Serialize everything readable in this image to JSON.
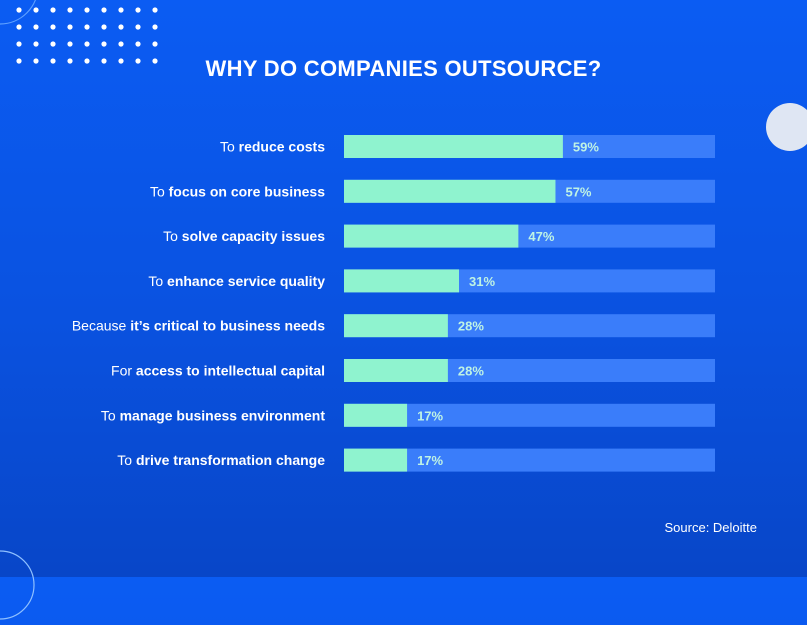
{
  "title": "WHY DO COMPANIES OUTSOURCE?",
  "source": "Source: Deloitte",
  "colors": {
    "bar_fill": "#8ff3cf",
    "bar_track": "#3a7dfa",
    "value_label": "#bff3e4",
    "background": "#0b5cf3"
  },
  "chart_data": {
    "type": "bar",
    "orientation": "horizontal",
    "title": "WHY DO COMPANIES OUTSOURCE?",
    "xlim": [
      0,
      100
    ],
    "unit": "%",
    "categories": [
      {
        "prefix": "To ",
        "bold": "reduce costs",
        "value": 59,
        "label": "59%"
      },
      {
        "prefix": "To ",
        "bold": "focus on core business",
        "value": 57,
        "label": "57%"
      },
      {
        "prefix": "To ",
        "bold": "solve capacity issues",
        "value": 47,
        "label": "47%"
      },
      {
        "prefix": "To ",
        "bold": "enhance service quality",
        "value": 31,
        "label": "31%"
      },
      {
        "prefix": "Because ",
        "bold": "it’s critical to business needs",
        "value": 28,
        "label": "28%"
      },
      {
        "prefix": "For ",
        "bold": "access to intellectual capital",
        "value": 28,
        "label": "28%"
      },
      {
        "prefix": "To ",
        "bold": "manage business environment",
        "value": 17,
        "label": "17%"
      },
      {
        "prefix": "To ",
        "bold": "drive transformation change",
        "value": 17,
        "label": "17%"
      }
    ]
  }
}
